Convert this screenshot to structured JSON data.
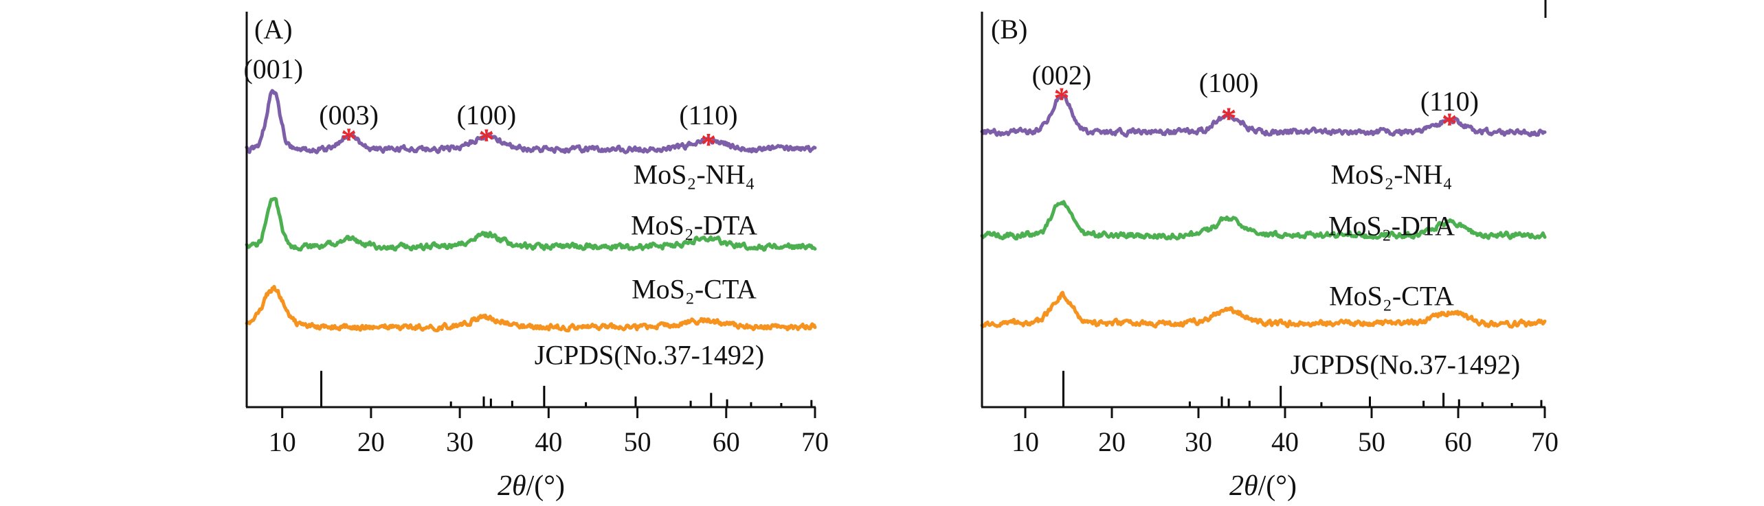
{
  "chart_data": [
    {
      "type": "line",
      "panel_label": "(A)",
      "xlabel_italic": "2θ",
      "xlabel_rest": "/(°)",
      "xlim": [
        6,
        70
      ],
      "xticks": [
        10,
        20,
        30,
        40,
        50,
        60,
        70
      ],
      "peak_labels": [
        {
          "text": "(001)",
          "x": 9
        },
        {
          "text": "(003)",
          "x": 17.5
        },
        {
          "text": "(100)",
          "x": 33
        },
        {
          "text": "(110)",
          "x": 58
        }
      ],
      "starred_peak_x": [
        17.5,
        33,
        58
      ],
      "star_color": "#e8282c",
      "series": [
        {
          "name": "MoS₂-NH₄",
          "color": "#7d5fa9",
          "baseline": 0.348,
          "peaks": [
            {
              "x": 9,
              "h": 0.151,
              "w": 1.05
            },
            {
              "x": 17.5,
              "h": 0.035,
              "w": 1.5
            },
            {
              "x": 33,
              "h": 0.033,
              "w": 2.4
            },
            {
              "x": 58,
              "h": 0.022,
              "w": 2.6
            }
          ]
        },
        {
          "name": "MoS₂-DTA",
          "color": "#4caf50",
          "baseline": 0.594,
          "peaks": [
            {
              "x": 9,
              "h": 0.125,
              "w": 1.0
            },
            {
              "x": 17.3,
              "h": 0.02,
              "w": 1.8
            },
            {
              "x": 33,
              "h": 0.03,
              "w": 2.4
            },
            {
              "x": 57.5,
              "h": 0.02,
              "w": 2.6
            }
          ]
        },
        {
          "name": "MoS₂-CTA",
          "color": "#f6921e",
          "baseline": 0.797,
          "peaks": [
            {
              "x": 9,
              "h": 0.096,
              "w": 1.7
            },
            {
              "x": 33,
              "h": 0.024,
              "w": 2.6
            },
            {
              "x": 57.5,
              "h": 0.016,
              "w": 2.8
            }
          ]
        }
      ],
      "reference": {
        "name": "JCPDS(No.37-1492)",
        "color": "#000000",
        "max_height": 0.09,
        "sticks": [
          {
            "x": 14.4,
            "i": 100
          },
          {
            "x": 29.0,
            "i": 14
          },
          {
            "x": 32.7,
            "i": 28
          },
          {
            "x": 33.5,
            "i": 22
          },
          {
            "x": 35.9,
            "i": 16
          },
          {
            "x": 39.5,
            "i": 58
          },
          {
            "x": 44.2,
            "i": 12
          },
          {
            "x": 49.8,
            "i": 28
          },
          {
            "x": 56.0,
            "i": 16
          },
          {
            "x": 58.3,
            "i": 38
          },
          {
            "x": 60.1,
            "i": 20
          },
          {
            "x": 62.8,
            "i": 12
          },
          {
            "x": 66.2,
            "i": 8
          },
          {
            "x": 69.6,
            "i": 18
          }
        ]
      }
    },
    {
      "type": "line",
      "panel_label": "(B)",
      "xlabel_italic": "2θ",
      "xlabel_rest": "/(°)",
      "xlim": [
        5,
        70
      ],
      "xticks": [
        10,
        20,
        30,
        40,
        50,
        60,
        70
      ],
      "peak_labels": [
        {
          "text": "(002)",
          "x": 14.2
        },
        {
          "text": "(100)",
          "x": 33.5
        },
        {
          "text": "(110)",
          "x": 59
        }
      ],
      "starred_peak_x": [
        14.2,
        33.5,
        59
      ],
      "star_color": "#e8282c",
      "series": [
        {
          "name": "MoS₂-NH₄",
          "color": "#7d5fa9",
          "baseline": 0.304,
          "peaks": [
            {
              "x": 14.2,
              "h": 0.093,
              "w": 1.5
            },
            {
              "x": 33.5,
              "h": 0.043,
              "w": 2.0
            },
            {
              "x": 59,
              "h": 0.029,
              "w": 2.2
            }
          ]
        },
        {
          "name": "MoS₂-DTA",
          "color": "#4caf50",
          "baseline": 0.565,
          "peaks": [
            {
              "x": 14.2,
              "h": 0.087,
              "w": 1.5
            },
            {
              "x": 33.5,
              "h": 0.043,
              "w": 2.1
            },
            {
              "x": 59,
              "h": 0.032,
              "w": 2.2
            }
          ]
        },
        {
          "name": "MoS₂-CTA",
          "color": "#f6921e",
          "baseline": 0.788,
          "peaks": [
            {
              "x": 14.2,
              "h": 0.07,
              "w": 1.7
            },
            {
              "x": 33.5,
              "h": 0.035,
              "w": 2.3
            },
            {
              "x": 59,
              "h": 0.029,
              "w": 2.4
            }
          ]
        }
      ],
      "reference": {
        "name": "JCPDS(No.37-1492)",
        "color": "#000000",
        "max_height": 0.09,
        "sticks": [
          {
            "x": 14.4,
            "i": 100
          },
          {
            "x": 29.0,
            "i": 14
          },
          {
            "x": 32.7,
            "i": 28
          },
          {
            "x": 33.5,
            "i": 22
          },
          {
            "x": 35.9,
            "i": 16
          },
          {
            "x": 39.5,
            "i": 58
          },
          {
            "x": 44.2,
            "i": 12
          },
          {
            "x": 49.8,
            "i": 28
          },
          {
            "x": 56.0,
            "i": 16
          },
          {
            "x": 58.3,
            "i": 38
          },
          {
            "x": 60.1,
            "i": 20
          },
          {
            "x": 62.8,
            "i": 12
          },
          {
            "x": 66.2,
            "i": 8
          },
          {
            "x": 69.6,
            "i": 18
          }
        ]
      }
    }
  ]
}
